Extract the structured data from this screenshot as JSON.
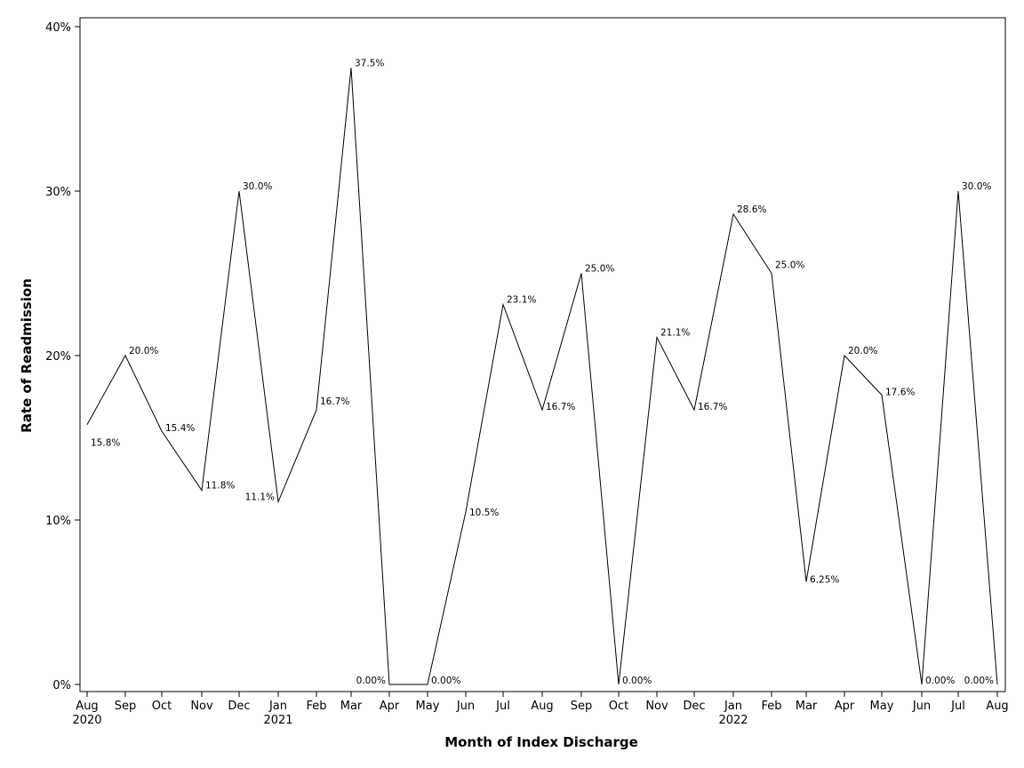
{
  "chart_data": {
    "type": "line",
    "title": "",
    "xlabel": "Month of Index Discharge",
    "ylabel": "Rate of Readmission",
    "ylim": [
      0,
      40
    ],
    "grid": false,
    "y_ticks": [
      "0%",
      "10%",
      "20%",
      "30%",
      "40%"
    ],
    "y_tick_values": [
      0,
      10,
      20,
      30,
      40
    ],
    "x_month_labels": [
      "Aug",
      "Sep",
      "Oct",
      "Nov",
      "Dec",
      "Jan",
      "Feb",
      "Mar",
      "Apr",
      "May",
      "Jun",
      "Jul",
      "Aug",
      "Sep",
      "Oct",
      "Nov",
      "Dec",
      "Jan",
      "Feb",
      "Mar",
      "Apr",
      "May",
      "Jun",
      "Jul",
      "Aug"
    ],
    "x_year_labels": [
      "2020",
      "",
      "",
      "",
      "",
      "2021",
      "",
      "",
      "",
      "",
      "",
      "",
      "",
      "",
      "",
      "",
      "",
      "2022",
      "",
      "",
      "",
      "",
      "",
      "",
      ""
    ],
    "x": [
      "2020-08",
      "2020-09",
      "2020-10",
      "2020-11",
      "2020-12",
      "2021-01",
      "2021-02",
      "2021-03",
      "2021-04",
      "2021-05",
      "2021-06",
      "2021-07",
      "2021-08",
      "2021-09",
      "2021-10",
      "2021-11",
      "2021-12",
      "2022-01",
      "2022-02",
      "2022-03",
      "2022-04",
      "2022-05",
      "2022-06",
      "2022-07",
      "2022-08"
    ],
    "values": [
      15.8,
      20.0,
      15.4,
      11.8,
      30.0,
      11.1,
      16.7,
      37.5,
      0,
      0,
      10.5,
      23.1,
      16.7,
      25.0,
      0,
      21.1,
      16.7,
      28.6,
      25.0,
      6.25,
      20.0,
      17.6,
      0,
      30.0,
      0
    ],
    "data_labels": [
      "15.8%",
      "20.0%",
      "15.4%",
      "11.8%",
      "30.0%",
      "11.1%",
      "16.7%",
      "37.5%",
      "0.00%",
      "0.00%",
      "10.5%",
      "23.1%",
      "16.7%",
      "25.0%",
      "0.00%",
      "21.1%",
      "16.7%",
      "28.6%",
      "25.0%",
      "6.25%",
      "20.0%",
      "17.6%",
      "0.00%",
      "30.0%",
      "0.00%"
    ],
    "line_color": "#000000"
  }
}
